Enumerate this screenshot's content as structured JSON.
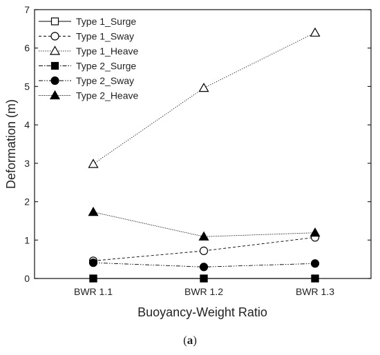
{
  "caption": {
    "open": "(",
    "letter": "a",
    "close": ")"
  },
  "chart_data": {
    "type": "line",
    "categories": [
      "BWR 1.1",
      "BWR 1.2",
      "BWR 1.3"
    ],
    "xlabel": "Buoyancy-Weight Ratio",
    "ylabel": "Deformation (m)",
    "ylim": [
      0,
      7
    ],
    "yticks": [
      0,
      1,
      2,
      3,
      4,
      5,
      6,
      7
    ],
    "grid": false,
    "legend_position": "top-left",
    "series": [
      {
        "name": "Type 1_Surge",
        "values": [
          0.0,
          0.0,
          0.0
        ],
        "marker": "square-open",
        "dash": "solid"
      },
      {
        "name": "Type 1_Sway",
        "values": [
          0.46,
          0.72,
          1.07
        ],
        "marker": "circle-open",
        "dash": "dashed"
      },
      {
        "name": "Type 1_Heave",
        "values": [
          2.98,
          4.96,
          6.4
        ],
        "marker": "triangle-open",
        "dash": "dotted"
      },
      {
        "name": "Type 2_Surge",
        "values": [
          0.0,
          0.0,
          0.0
        ],
        "marker": "square-filled",
        "dash": "dashdot"
      },
      {
        "name": "Type 2_Sway",
        "values": [
          0.41,
          0.3,
          0.39
        ],
        "marker": "circle-filled",
        "dash": "dashdotdot"
      },
      {
        "name": "Type 2_Heave",
        "values": [
          1.73,
          1.09,
          1.19
        ],
        "marker": "triangle-filled",
        "dash": "densedot"
      }
    ]
  }
}
